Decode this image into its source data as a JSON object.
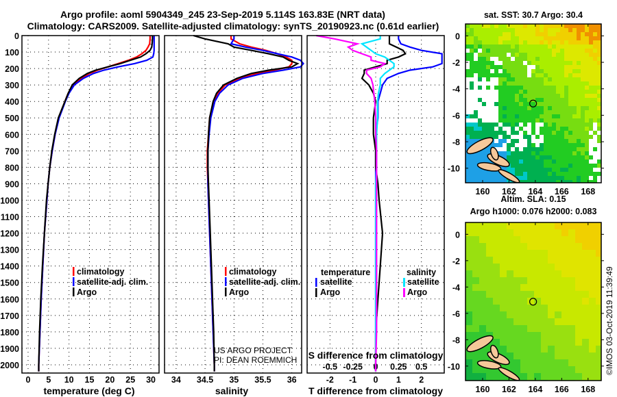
{
  "header": {
    "title_line1": "Argo profile: aoml 5904349_245 23-Sep-2019 5.114S 163.83E (NRT data)",
    "title_line2": "Climatology: CARS2009. Satellite-adjusted climatology: synTS_20190923.nc (0.61d earlier)"
  },
  "credits": {
    "line1": "US ARGO PROJECT",
    "line2": "PI: DEAN ROEMMICH"
  },
  "stamp": "©IMOS 03-Oct-2019 11:39:49",
  "legend_profiles": {
    "climatology": "climatology",
    "satellite": "satellite-adj. clim.",
    "argo": "Argo"
  },
  "legend_diff": {
    "temp_title": "temperature",
    "sal_title": "salinity",
    "satellite": "satellite",
    "argo": "Argo"
  },
  "colors": {
    "climatology": "#ff0000",
    "satellite": "#0000ff",
    "argo": "#000000",
    "sal_satellite": "#00e5ff",
    "sal_argo": "#ff00ff"
  },
  "chart_data": [
    {
      "type": "line",
      "name": "temperature",
      "xlabel": "temperature (deg C)",
      "xlim": [
        -1.5,
        32
      ],
      "ylim": [
        2050,
        0
      ],
      "xticks": [
        "0",
        "5",
        "10",
        "15",
        "20",
        "25",
        "30"
      ],
      "yticks": [
        "0",
        "100",
        "200",
        "300",
        "400",
        "500",
        "600",
        "700",
        "800",
        "900",
        "1000",
        "1100",
        "1200",
        "1300",
        "1400",
        "1500",
        "1600",
        "1700",
        "1800",
        "1900",
        "2000"
      ],
      "depth": [
        0,
        20,
        50,
        70,
        90,
        110,
        130,
        150,
        170,
        190,
        210,
        230,
        260,
        300,
        350,
        400,
        500,
        600,
        700,
        800,
        900,
        1000,
        1200,
        1400,
        1600,
        1800,
        2000,
        2040
      ],
      "series": [
        {
          "name": "climatology",
          "values": [
            29.8,
            29.8,
            29.7,
            29.3,
            28.8,
            27.8,
            26.5,
            24.5,
            22,
            19.5,
            17,
            15,
            13,
            11,
            9.8,
            9,
            7.5,
            6.6,
            5.9,
            5.3,
            4.9,
            4.6,
            4.0,
            3.6,
            3.2,
            2.9,
            2.6,
            2.6
          ]
        },
        {
          "name": "satellite-adj. clim.",
          "values": [
            30.8,
            30.8,
            30.8,
            30.8,
            30.8,
            30.7,
            30.5,
            29,
            26,
            22,
            18.5,
            16,
            13.5,
            11.3,
            10,
            9.1,
            7.6,
            6.6,
            5.9,
            5.3,
            4.9,
            4.6,
            4.0,
            3.6,
            3.2,
            2.9,
            2.6,
            2.6
          ]
        },
        {
          "name": "Argo",
          "values": [
            30.4,
            30.4,
            30.3,
            30.2,
            29.8,
            28.8,
            27.5,
            25,
            22.5,
            19.5,
            16.5,
            14.5,
            12.5,
            10.8,
            9.8,
            9,
            7.4,
            6.5,
            5.8,
            5.3,
            4.9,
            4.5,
            4.0,
            3.5,
            3.1,
            2.8,
            2.6,
            2.6
          ]
        }
      ]
    },
    {
      "type": "line",
      "name": "salinity",
      "xlabel": "salinity",
      "xlim": [
        33.8,
        36.17
      ],
      "ylim": [
        2050,
        0
      ],
      "xticks": [
        "34",
        "34.5",
        "35",
        "35.5",
        "36"
      ],
      "depth": [
        0,
        20,
        50,
        70,
        90,
        110,
        130,
        150,
        170,
        190,
        210,
        230,
        260,
        300,
        350,
        400,
        500,
        600,
        700,
        800,
        900,
        1000,
        1200,
        1400,
        1600,
        1800,
        2000,
        2040
      ],
      "series": [
        {
          "name": "climatology",
          "values": [
            34.95,
            34.95,
            35.1,
            35.3,
            35.55,
            35.75,
            35.9,
            36.0,
            36.0,
            35.95,
            35.7,
            35.4,
            35.1,
            34.85,
            34.72,
            34.65,
            34.58,
            34.56,
            34.54,
            34.54,
            34.55,
            34.56,
            34.58,
            34.6,
            34.62,
            34.64,
            34.66,
            34.66
          ]
        },
        {
          "name": "satellite-adj. clim.",
          "values": [
            35.0,
            35.0,
            34.95,
            35.2,
            35.5,
            35.75,
            36.0,
            36.15,
            36.2,
            36.15,
            35.85,
            35.5,
            35.15,
            34.9,
            34.75,
            34.67,
            34.6,
            34.57,
            34.55,
            34.55,
            34.55,
            34.56,
            34.58,
            34.6,
            34.62,
            34.64,
            34.66,
            34.66
          ]
        },
        {
          "name": "Argo",
          "values": [
            34.3,
            34.5,
            34.9,
            35.0,
            35.3,
            35.6,
            35.85,
            35.95,
            36.1,
            36.0,
            35.6,
            35.3,
            35.05,
            34.82,
            34.7,
            34.64,
            34.58,
            34.56,
            34.55,
            34.55,
            34.56,
            34.57,
            34.59,
            34.61,
            34.63,
            34.65,
            34.66,
            34.66
          ]
        }
      ]
    },
    {
      "type": "line",
      "name": "difference",
      "xlabel": "T difference from climatology",
      "xlabel2": "S difference from climatology",
      "xlim": [
        -3,
        3
      ],
      "x2lim": [
        -0.75,
        0.75
      ],
      "ylim": [
        2050,
        0
      ],
      "xticks": [
        "-2",
        "-1",
        "0",
        "1",
        "2"
      ],
      "x2ticks": [
        "-0.5",
        "-0.25",
        "0",
        "0.25",
        "0.5"
      ],
      "depth": [
        0,
        20,
        50,
        70,
        90,
        110,
        130,
        150,
        170,
        190,
        210,
        230,
        260,
        300,
        350,
        400,
        500,
        600,
        700,
        800,
        900,
        1000,
        1200,
        1400,
        1600,
        1800,
        2000,
        2040
      ],
      "series": [
        {
          "name": "temperature satellite",
          "axis": "T",
          "values": [
            1.0,
            1.0,
            1.1,
            1.5,
            2.0,
            2.9,
            2.9,
            2.9,
            2.9,
            2.5,
            1.5,
            1.0,
            0.5,
            0.3,
            0.2,
            0.1,
            0.1,
            0,
            0,
            0,
            0,
            0,
            0,
            0,
            0,
            0,
            0,
            0
          ]
        },
        {
          "name": "temperature Argo",
          "axis": "T",
          "values": [
            0.6,
            0.6,
            0.6,
            0.9,
            1.2,
            1.3,
            1.0,
            0.5,
            0.5,
            0,
            -0.5,
            -0.5,
            -0.6,
            -0.3,
            -0.1,
            0,
            -0.1,
            -0.1,
            0,
            0,
            0.1,
            0.15,
            0.3,
            0.2,
            0.1,
            0,
            0,
            0
          ]
        },
        {
          "name": "salinity satellite",
          "axis": "S",
          "values": [
            0.05,
            0.05,
            -0.15,
            -0.1,
            -0.05,
            0,
            0.1,
            0.15,
            0.2,
            0.2,
            0.15,
            0.1,
            0.05,
            0.05,
            0.03,
            0.02,
            0.02,
            0.01,
            0.01,
            0.01,
            0,
            0,
            0,
            0,
            0,
            0,
            0,
            0
          ]
        },
        {
          "name": "salinity Argo",
          "axis": "S",
          "values": [
            -0.65,
            -0.45,
            -0.2,
            -0.3,
            -0.25,
            -0.15,
            -0.05,
            -0.05,
            0.1,
            0.05,
            -0.1,
            -0.1,
            -0.05,
            -0.03,
            -0.02,
            -0.01,
            0,
            0,
            0.01,
            0.01,
            0.01,
            0.01,
            0.01,
            0.01,
            0.01,
            0.01,
            0,
            0
          ]
        }
      ]
    },
    {
      "type": "heatmap",
      "name": "sst-map",
      "title": "sat. SST: 30.7 Argo: 30.4",
      "xlim": [
        158.7,
        169
      ],
      "ylim": [
        -11.1,
        0.9
      ],
      "xticks": [
        "160",
        "162",
        "164",
        "166",
        "168"
      ],
      "yticks": [
        "0",
        "-2",
        "-4",
        "-6",
        "-8",
        "-10"
      ],
      "argo_position": {
        "lon": 163.83,
        "lat": -5.114
      }
    },
    {
      "type": "heatmap",
      "name": "sla-map",
      "title": "Altim. SLA: 0.15",
      "subtitle": "Argo h1000: 0.076 h2000: 0.083",
      "xlim": [
        158.7,
        169
      ],
      "ylim": [
        -11.1,
        0.9
      ],
      "xticks": [
        "160",
        "162",
        "164",
        "166",
        "168"
      ],
      "yticks": [
        "0",
        "-2",
        "-4",
        "-6",
        "-8",
        "-10"
      ],
      "argo_position": {
        "lon": 163.83,
        "lat": -5.114
      }
    }
  ]
}
